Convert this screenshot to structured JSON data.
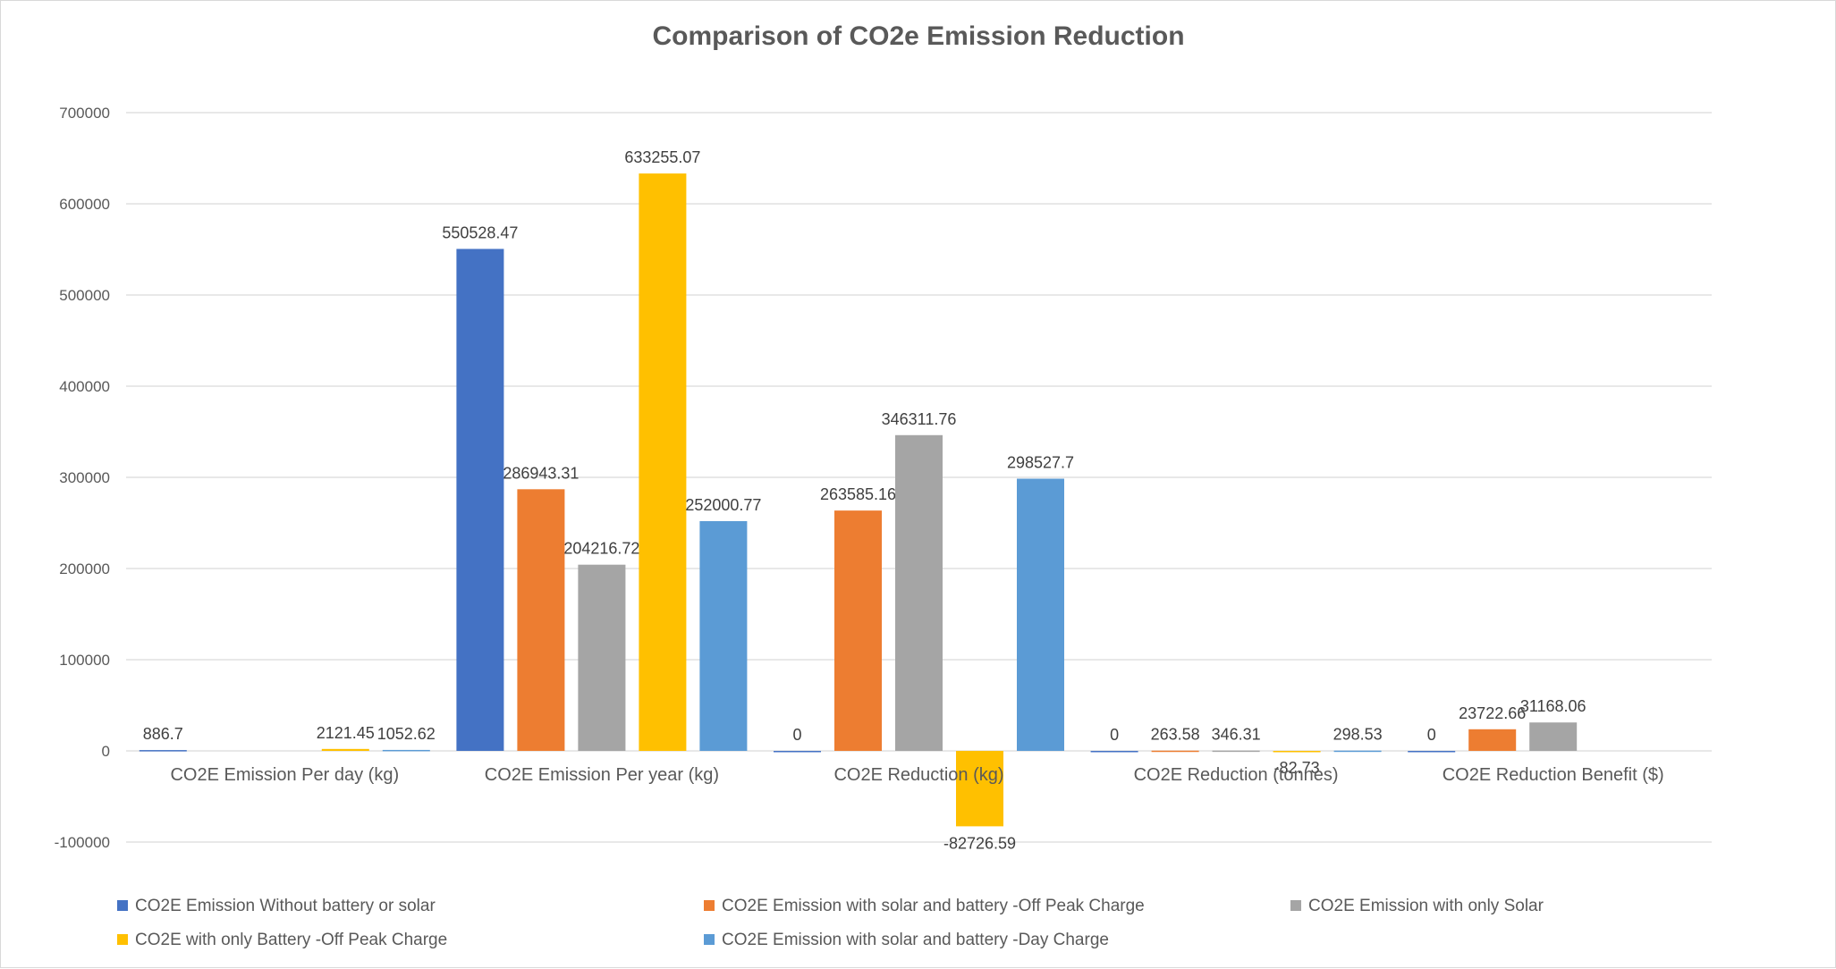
{
  "chart_data": {
    "type": "bar",
    "title": "Comparison of CO2e Emission Reduction",
    "xlabel": "",
    "ylabel": "",
    "ylim": [
      -100000,
      700000
    ],
    "yticks": [
      -100000,
      0,
      100000,
      200000,
      300000,
      400000,
      500000,
      600000,
      700000
    ],
    "grid": true,
    "legend_position": "bottom",
    "categories": [
      "CO2E Emission Per day (kg)",
      "CO2E Emission Per year (kg)",
      "CO2E Reduction (kg)",
      "CO2E Reduction (tonnes)",
      "CO2E Reduction Benefit ($)"
    ],
    "series": [
      {
        "name": "CO2E Emission Without battery or solar",
        "color": "#4472C4",
        "values": [
          886.7,
          550528.47,
          0,
          0,
          0
        ],
        "labels": [
          "886.7",
          "550528.47",
          "0",
          "0",
          "0"
        ]
      },
      {
        "name": "CO2E Emission with solar and battery -Off Peak Charge",
        "color": "#ED7D31",
        "values": [
          null,
          286943.31,
          263585.16,
          263.58,
          23722.66
        ],
        "labels": [
          "",
          "286943.31",
          "263585.16",
          "263.58",
          "23722.66"
        ]
      },
      {
        "name": "CO2E Emission with only Solar",
        "color": "#A5A5A5",
        "values": [
          null,
          204216.72,
          346311.76,
          346.31,
          31168.06
        ],
        "labels": [
          "",
          "204216.72",
          "346311.76",
          "346.31",
          "31168.06"
        ]
      },
      {
        "name": "CO2E with only Battery -Off Peak Charge",
        "color": "#FFC000",
        "values": [
          2121.45,
          633255.07,
          -82726.59,
          -82.73,
          null
        ],
        "labels": [
          "2121.45",
          "633255.07",
          "-82726.59",
          "-82.73",
          ""
        ]
      },
      {
        "name": "CO2E Emission with solar and battery -Day Charge",
        "color": "#5B9BD5",
        "values": [
          1052.62,
          252000.77,
          298527.7,
          298.53,
          null
        ],
        "labels": [
          "1052.62",
          "252000.77",
          "298527.7",
          "298.53",
          ""
        ]
      }
    ]
  }
}
